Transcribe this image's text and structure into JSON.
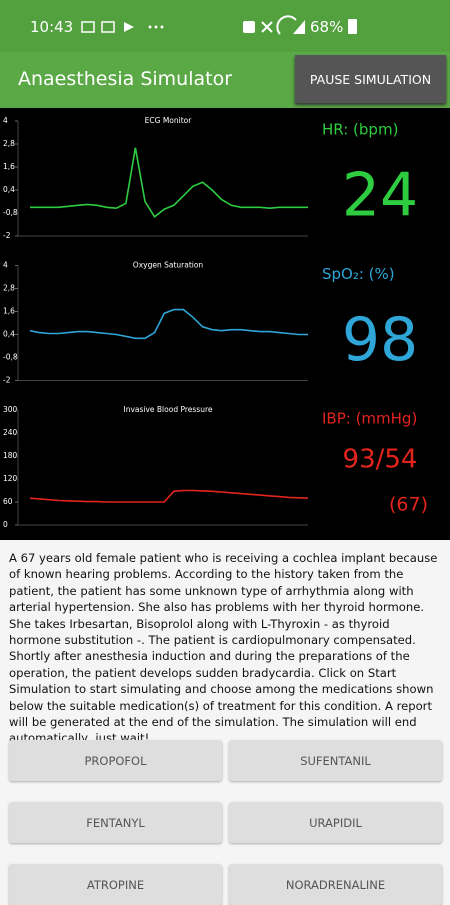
{
  "status_bar": {
    "time": "10:43",
    "battery": "68%"
  },
  "app_bar": {
    "title": "Anaesthesia Simulator",
    "button": "PAUSE SIMULATION"
  },
  "monitors": [
    {
      "chart_data": {
        "type": "line",
        "title": "ECG Monitor",
        "color": "#2ecc40",
        "ylim": [
          -2,
          4
        ],
        "yticks": [
          4,
          {
            "value": 2.8,
            "label": "2,8"
          },
          {
            "value": 1.6,
            "label": "1,6"
          },
          {
            "value": 0.4,
            "label": "0,4"
          },
          {
            "value": -0.8,
            "label": "-0,8"
          },
          -2
        ],
        "values": [
          -0.5,
          -0.5,
          -0.5,
          -0.5,
          -0.45,
          -0.4,
          -0.35,
          -0.4,
          -0.5,
          -0.55,
          -0.3,
          2.6,
          -0.2,
          -1.0,
          -0.6,
          -0.4,
          0.1,
          0.6,
          0.8,
          0.4,
          -0.1,
          -0.4,
          -0.5,
          -0.5,
          -0.5,
          -0.55,
          -0.5,
          -0.5,
          -0.5,
          -0.5
        ]
      },
      "readout": {
        "label": "HR: (bpm)",
        "value": "24"
      }
    },
    {
      "chart_data": {
        "type": "line",
        "title": "Oxygen Saturation",
        "color": "#2fa6d8",
        "ylim": [
          -2,
          4
        ],
        "yticks": [
          4,
          {
            "value": 2.8,
            "label": "2,8"
          },
          {
            "value": 1.6,
            "label": "1,6"
          },
          {
            "value": 0.4,
            "label": "0,4"
          },
          {
            "value": -0.8,
            "label": "-0,8"
          },
          -2
        ],
        "values": [
          0.6,
          0.5,
          0.45,
          0.45,
          0.5,
          0.55,
          0.55,
          0.5,
          0.45,
          0.4,
          0.3,
          0.2,
          0.2,
          0.5,
          1.5,
          1.7,
          1.7,
          1.3,
          0.8,
          0.65,
          0.6,
          0.65,
          0.65,
          0.6,
          0.55,
          0.55,
          0.5,
          0.45,
          0.4,
          0.4
        ]
      },
      "readout": {
        "label": "SpO₂: (%)",
        "value": "98"
      }
    },
    {
      "chart_data": {
        "type": "line",
        "title": "Invasive Blood Pressure",
        "color": "#e3241d",
        "ylim": [
          0,
          300
        ],
        "yticks": [
          300,
          240,
          180,
          120,
          60,
          0
        ],
        "values": [
          70,
          68,
          66,
          64,
          63,
          62,
          61,
          61,
          60,
          60,
          60,
          60,
          60,
          60,
          60,
          88,
          90,
          90,
          89,
          88,
          86,
          84,
          82,
          80,
          78,
          76,
          74,
          72,
          71,
          70
        ]
      },
      "readout": {
        "label": "IBP: (mmHg)",
        "value": "93/54",
        "extra": "(67)"
      }
    }
  ],
  "description": "A 67 years old female patient who is receiving a cochlea implant because of known hearing problems. According to the history taken from the patient, the patient has some unknown type of arrhythmia along with arterial hypertension. She also has problems with her thyroid hormone. She takes Irbesartan, Bisoprolol along with L-Thyroxin - as thyroid hormone substitution -. The patient is cardiopulmonary compensated. Shortly after anesthesia induction and during the preparations of the operation, the patient develops sudden bradycardia. Click on Start Simulation to start simulating and choose among the medications shown below the suitable medication(s) of treatment for this condition. A report will be generated at the end of the simulation. The simulation will end automatically, just wait!",
  "buttons": [
    "PROPOFOL",
    "SUFENTANIL",
    "FENTANYL",
    "URAPIDIL",
    "ATROPINE",
    "NORADRENALINE"
  ]
}
